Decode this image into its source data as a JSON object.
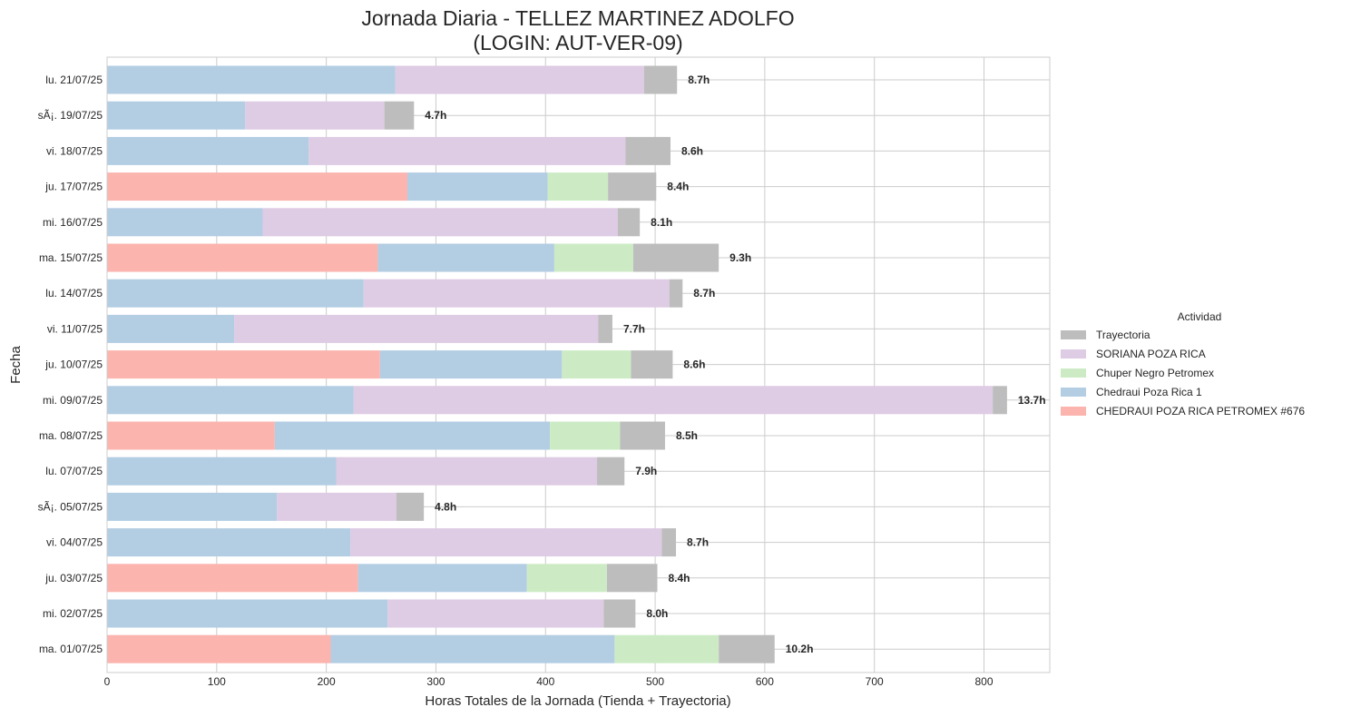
{
  "chart_data": {
    "type": "bar",
    "orientation": "horizontal",
    "stacked": true,
    "title_line1": "Jornada Diaria - TELLEZ MARTINEZ ADOLFO",
    "title_line2": "(LOGIN: AUT-VER-09)",
    "xlabel": "Horas Totales de la Jornada (Tienda + Trayectoria)",
    "ylabel": "Fecha",
    "xlim": [
      0,
      860
    ],
    "xticks": [
      0,
      100,
      200,
      300,
      400,
      500,
      600,
      700,
      800
    ],
    "grid": true,
    "legend": {
      "title": "Actividad",
      "placement": "right-center"
    },
    "categories": [
      "lu. 21/07/25",
      "sÃ¡. 19/07/25",
      "vi. 18/07/25",
      "ju. 17/07/25",
      "mi. 16/07/25",
      "ma. 15/07/25",
      "lu. 14/07/25",
      "vi. 11/07/25",
      "ju. 10/07/25",
      "mi. 09/07/25",
      "ma. 08/07/25",
      "lu. 07/07/25",
      "sÃ¡. 05/07/25",
      "vi. 04/07/25",
      "ju. 03/07/25",
      "mi. 02/07/25",
      "ma. 01/07/25"
    ],
    "totals_labels": [
      "8.7h",
      "4.7h",
      "8.6h",
      "8.4h",
      "8.1h",
      "9.3h",
      "8.7h",
      "7.7h",
      "8.6h",
      "13.7h",
      "8.5h",
      "7.9h",
      "4.8h",
      "8.7h",
      "8.4h",
      "8.0h",
      "10.2h"
    ],
    "series": [
      {
        "name": "CHEDRAUI POZA RICA PETROMEX #676",
        "color": "#fbb4ae",
        "values": [
          0,
          0,
          0,
          274,
          0,
          247,
          0,
          0,
          249,
          0,
          153,
          0,
          0,
          0,
          229,
          0,
          204
        ]
      },
      {
        "name": "Chedraui Poza Rica 1",
        "color": "#b3cde3",
        "values": [
          263,
          126,
          184,
          128,
          142,
          161,
          234,
          116,
          166,
          225,
          251,
          209,
          155,
          222,
          154,
          256,
          259
        ]
      },
      {
        "name": "Chuper Negro Petromex",
        "color": "#ccebc5",
        "values": [
          0,
          0,
          0,
          55,
          0,
          72,
          0,
          0,
          63,
          0,
          64,
          0,
          0,
          0,
          73,
          0,
          95
        ]
      },
      {
        "name": "SORIANA POZA RICA",
        "color": "#decbe4",
        "values": [
          227,
          127,
          289,
          0,
          324,
          0,
          279,
          332,
          0,
          583,
          0,
          238,
          109,
          284,
          0,
          197,
          0
        ]
      },
      {
        "name": "Trayectoria",
        "color": "#bdbdbd",
        "values": [
          30,
          27,
          41,
          44,
          20,
          78,
          12,
          13,
          38,
          13,
          41,
          25,
          25,
          13,
          46,
          29,
          51
        ]
      }
    ],
    "legend_order": [
      "Trayectoria",
      "SORIANA POZA RICA",
      "Chuper Negro Petromex",
      "Chedraui Poza Rica 1",
      "CHEDRAUI POZA RICA PETROMEX #676"
    ]
  }
}
